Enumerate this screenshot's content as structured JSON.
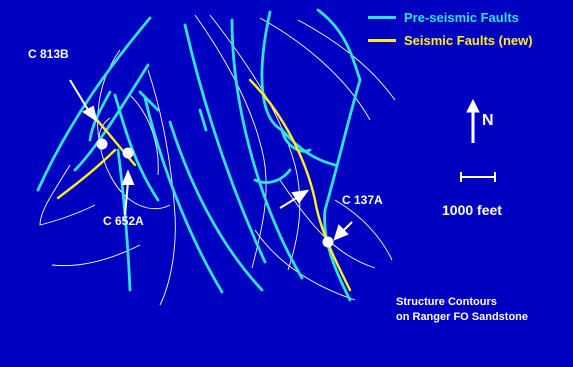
{
  "legend": {
    "items": [
      {
        "label": "Pre-seismic Faults",
        "color": "#33e0e0"
      },
      {
        "label": "Seismic Faults (new)",
        "color": "#ffee22"
      }
    ]
  },
  "north_arrow": {
    "label": "N"
  },
  "scale_bar": {
    "label": "1000 feet"
  },
  "wells": [
    {
      "name": "C 813B"
    },
    {
      "name": "C 652A"
    },
    {
      "name": "C 137A"
    }
  ],
  "caption": {
    "line1": "Structure Contours",
    "line2": "on Ranger FO Sandstone"
  },
  "colors": {
    "background": "#0000c0",
    "contour": "#ffffff",
    "pre_seismic_fault": "#33e0e0",
    "seismic_fault": "#ffee22",
    "well": "#ffffff",
    "text": "#ffffff"
  }
}
